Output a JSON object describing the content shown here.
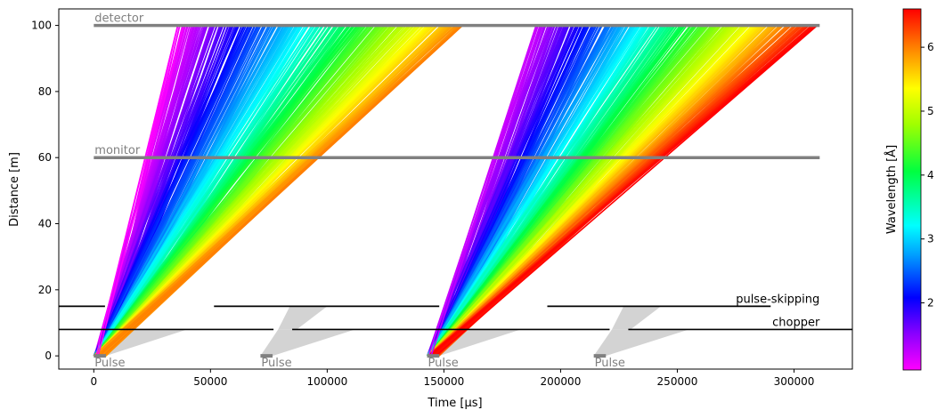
{
  "chart_data": {
    "type": "line",
    "title": "",
    "xlabel": "Time [µs]",
    "ylabel": "Distance [m]",
    "xlim": [
      -15000,
      325000
    ],
    "ylim": [
      -4,
      105
    ],
    "x_ticks": [
      0,
      50000,
      100000,
      150000,
      200000,
      250000,
      300000
    ],
    "x_tick_labels": [
      "0",
      "50000",
      "100000",
      "150000",
      "200000",
      "250000",
      "300000"
    ],
    "y_ticks": [
      0,
      20,
      40,
      60,
      80,
      100
    ],
    "y_tick_labels": [
      "0",
      "20",
      "40",
      "60",
      "80",
      "100"
    ],
    "grid": false,
    "colorbar": {
      "label": "Wavelength [Å]",
      "colormap": "gist_rainbow_r",
      "range": [
        0.95,
        6.6
      ],
      "ticks": [
        2,
        3,
        4,
        5,
        6
      ],
      "tick_labels": [
        "2",
        "3",
        "4",
        "5",
        "6"
      ]
    },
    "components": [
      {
        "name": "detector",
        "distance": 100,
        "x_range": [
          0,
          311000
        ],
        "color": "#808080"
      },
      {
        "name": "monitor",
        "distance": 60,
        "x_range": [
          0,
          311000
        ],
        "color": "#808080"
      }
    ],
    "choppers": [
      {
        "name": "pulse-skipping",
        "distance": 15,
        "open_windows": [
          [
            4800,
            51500
          ],
          [
            148000,
            194300
          ]
        ],
        "segments": [
          [
            -15000,
            4800
          ],
          [
            51500,
            148000
          ],
          [
            194300,
            290000
          ]
        ],
        "color": "#000000"
      },
      {
        "name": "chopper",
        "distance": 8,
        "open_windows": [
          [
            77000,
            85000
          ],
          [
            221000,
            229000
          ]
        ],
        "segments": [
          [
            -15000,
            77000
          ],
          [
            85000,
            221000
          ],
          [
            229000,
            325000
          ]
        ],
        "color": "#000000"
      }
    ],
    "pulses": [
      {
        "label": "Pulse",
        "t_start": 0,
        "t_end": 5200,
        "distance": 0
      },
      {
        "label": "Pulse",
        "t_start": 71400,
        "t_end": 76600,
        "distance": 0
      },
      {
        "label": "Pulse",
        "t_start": 142800,
        "t_end": 148000,
        "distance": 0
      },
      {
        "label": "Pulse",
        "t_start": 214200,
        "t_end": 219400,
        "distance": 0
      }
    ],
    "shaded_fans": [
      {
        "pulse": 1,
        "t0": [
          0,
          5200
        ],
        "t_at_8m": [
          8000,
          40000
        ]
      },
      {
        "pulse": 2,
        "t0": [
          71400,
          76600
        ],
        "t_at_8m": [
          79000,
          112000
        ]
      },
      {
        "pulse": 3,
        "t0": [
          142800,
          148000
        ],
        "t_at_8m": [
          150000,
          183000
        ]
      },
      {
        "pulse": 4,
        "t0": [
          214200,
          219400
        ],
        "t_at_8m": [
          222000,
          255000
        ]
      }
    ],
    "neutron_rays": [
      {
        "pulse": 1,
        "t_at_0m_range": [
          0,
          5200
        ],
        "t_at_100m_range": [
          36000,
          158000
        ],
        "wavelength_range": [
          0.95,
          6.0
        ]
      },
      {
        "pulse": 3,
        "t_at_0m_range": [
          142800,
          148000
        ],
        "t_at_100m_range": [
          190000,
          310000
        ],
        "wavelength_range": [
          1.2,
          6.6
        ]
      }
    ],
    "outlier_rays": [
      {
        "pulse": 1,
        "t0": 1000,
        "t100": 36000,
        "wavelength": 0.95
      },
      {
        "pulse": 1,
        "t0": 1800,
        "t100": 38500,
        "wavelength": 0.97
      },
      {
        "pulse": 1,
        "t0": 3200,
        "t100": 155000,
        "wavelength": 5.9
      },
      {
        "pulse": 1,
        "t0": 2500,
        "t100": 158000,
        "wavelength": 6.0
      },
      {
        "pulse": 3,
        "t0": 143500,
        "t100": 189500,
        "wavelength": 1.2
      },
      {
        "pulse": 3,
        "t0": 144500,
        "t100": 191500,
        "wavelength": 1.25
      },
      {
        "pulse": 3,
        "t0": 145500,
        "t100": 308000,
        "wavelength": 6.55
      },
      {
        "pulse": 3,
        "t0": 146500,
        "t100": 310000,
        "wavelength": 6.6
      }
    ]
  }
}
